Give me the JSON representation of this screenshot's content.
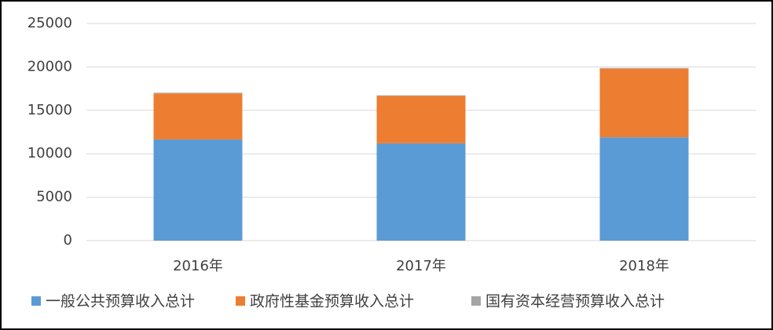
{
  "chart_data": {
    "type": "stacked_bar",
    "categories": [
      "2016年",
      "2017年",
      "2018年"
    ],
    "series": [
      {
        "name": "一般公共预算收入总计",
        "color": "#5b9bd5",
        "values": [
          11650,
          11200,
          11900
        ]
      },
      {
        "name": "政府性基金预算收入总计",
        "color": "#ed7d31",
        "values": [
          5300,
          5450,
          7900
        ]
      },
      {
        "name": "国有资本经营预算收入总计",
        "color": "#a5a5a5",
        "values": [
          80,
          80,
          80
        ]
      }
    ],
    "ylim": [
      0,
      25000
    ],
    "yticks": [
      0,
      5000,
      10000,
      15000,
      20000,
      25000
    ],
    "grid": true,
    "legend": "bottom"
  }
}
